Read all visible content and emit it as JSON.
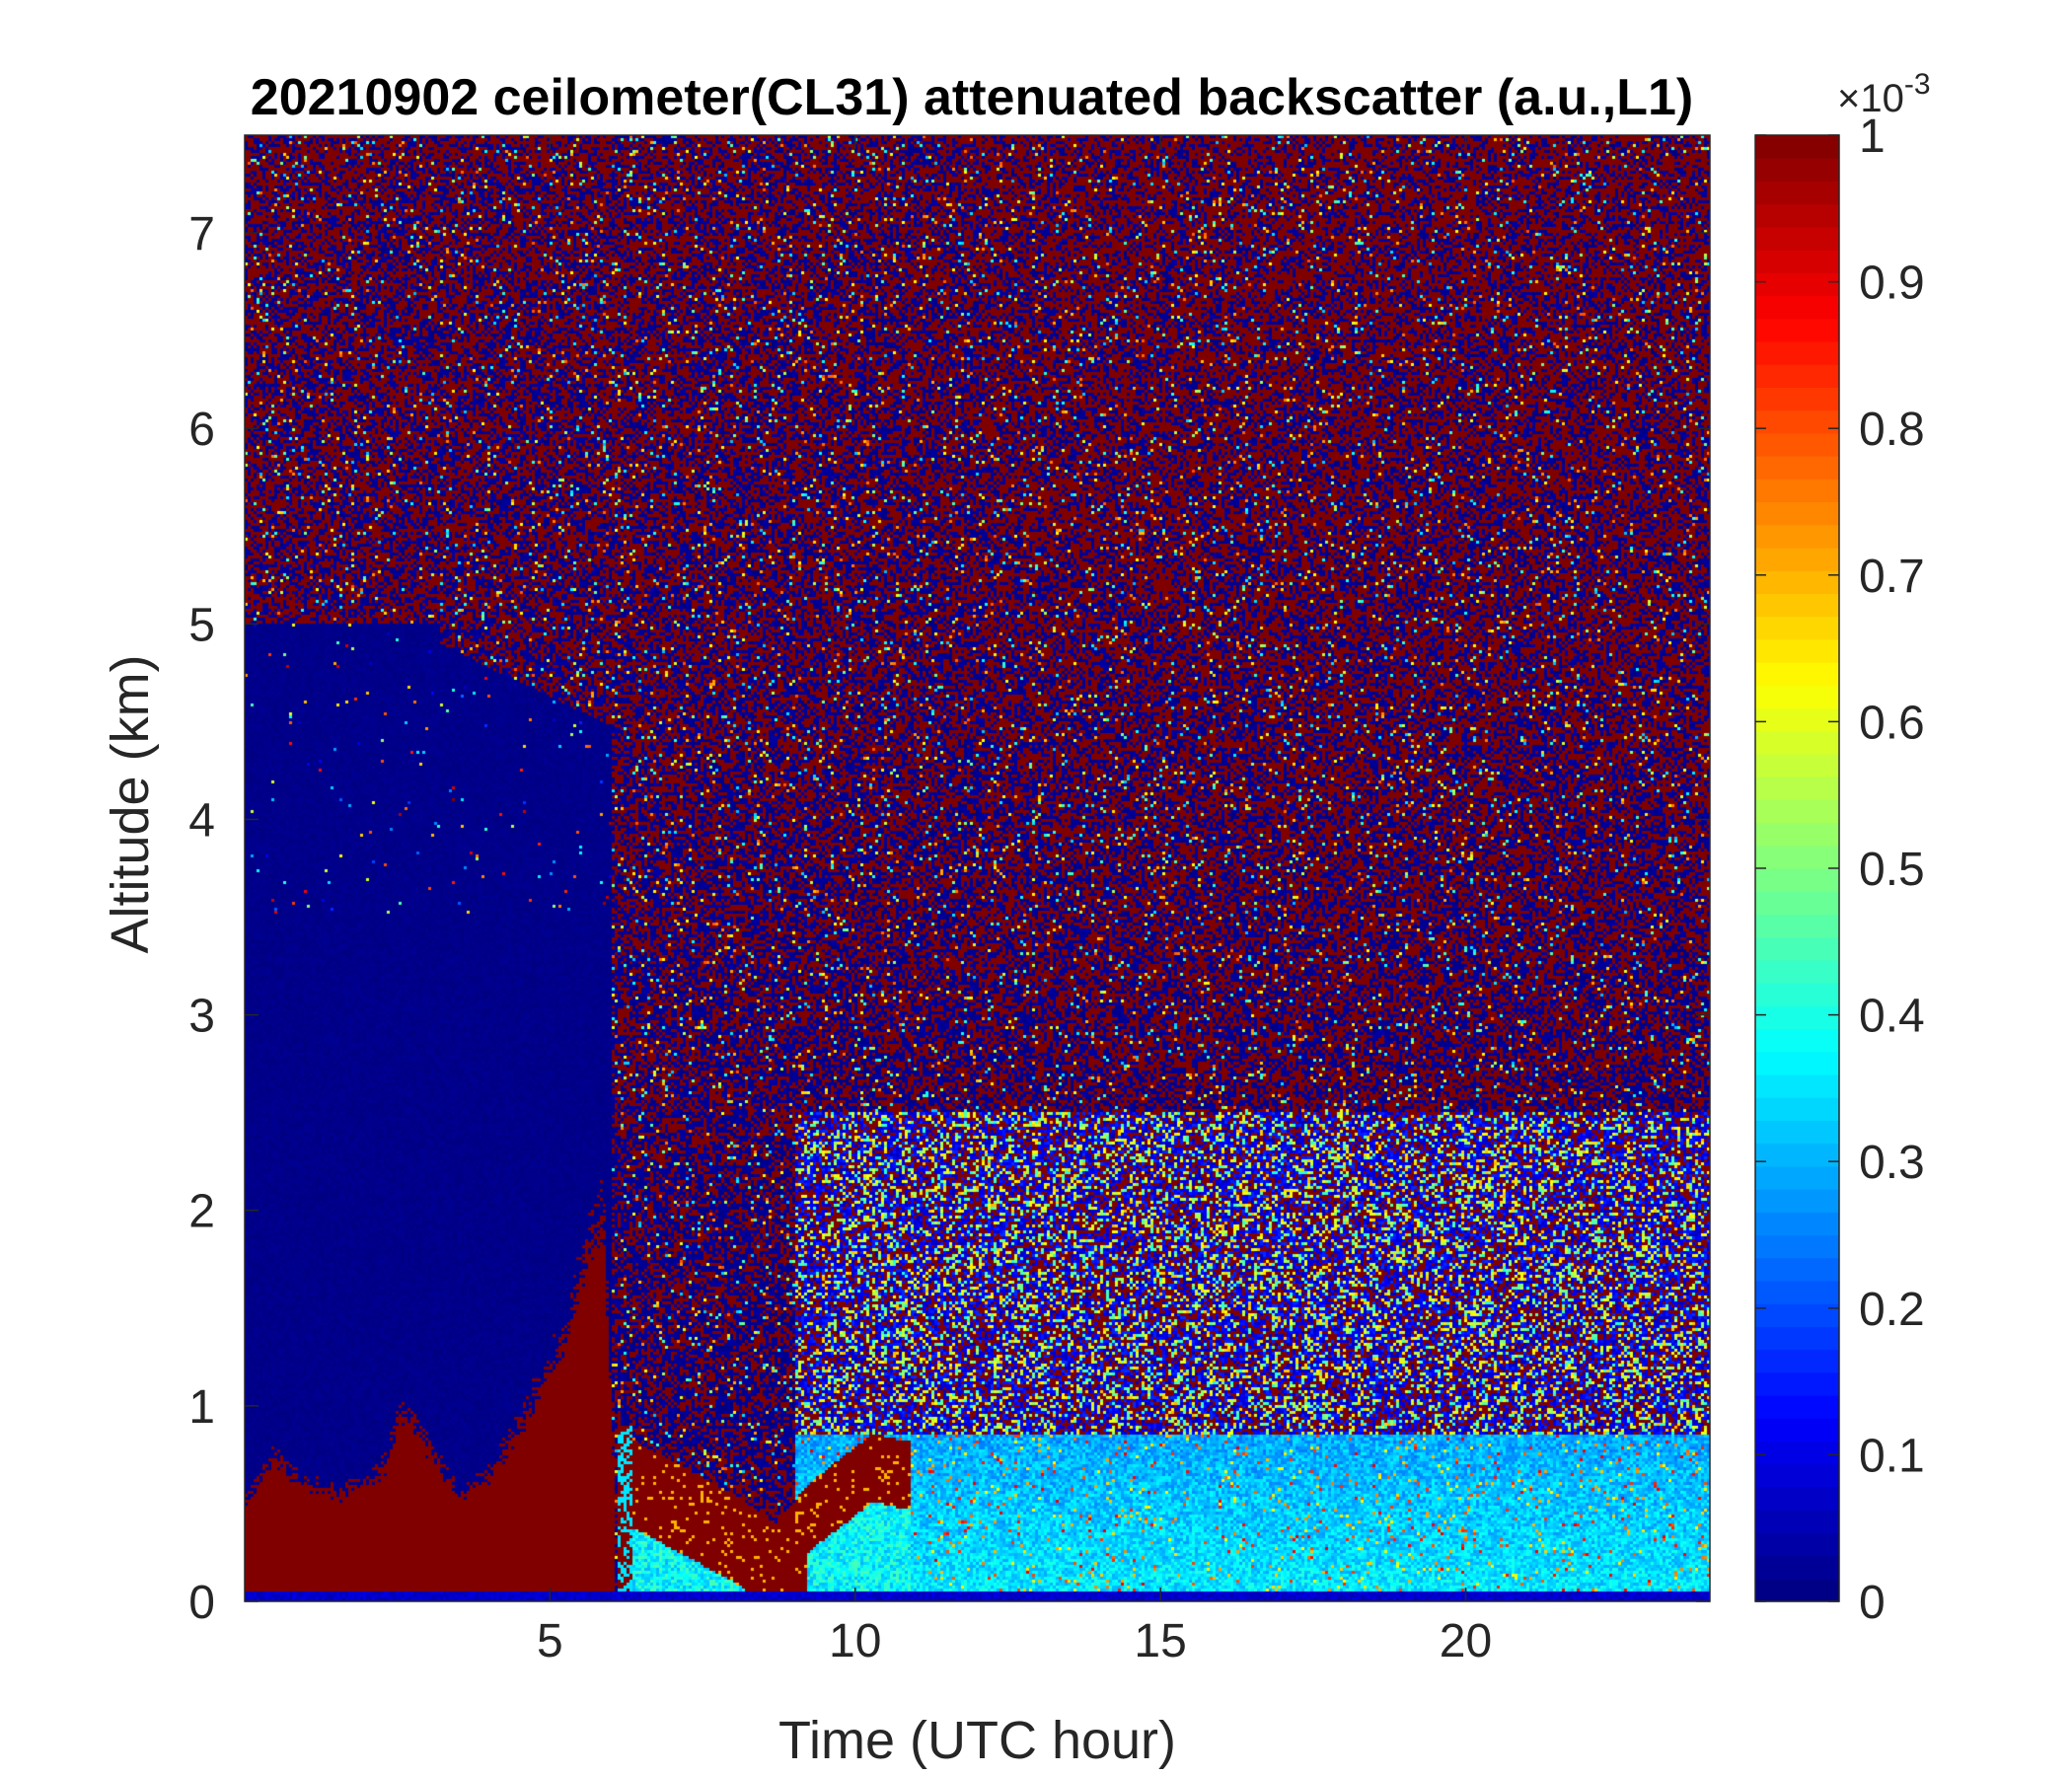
{
  "chart_data": {
    "type": "heatmap",
    "title": "20210902 ceilometer(CL31) attenuated backscatter (a.u.,L1)",
    "xlabel": "Time (UTC hour)",
    "ylabel": "Altitude (km)",
    "xlim": [
      0,
      24
    ],
    "ylim": [
      0,
      7.5
    ],
    "xticks": [
      5,
      10,
      15,
      20
    ],
    "yticks": [
      0,
      1,
      2,
      3,
      4,
      5,
      6,
      7
    ],
    "grid": false,
    "colorbar": {
      "colormap": "jet",
      "range": [
        0,
        1
      ],
      "ticks": [
        0,
        0.1,
        0.2,
        0.3,
        0.4,
        0.5,
        0.6,
        0.7,
        0.8,
        0.9,
        1
      ],
      "tick_labels": [
        "0",
        "0.1",
        "0.2",
        "0.3",
        "0.4",
        "0.5",
        "0.6",
        "0.7",
        "0.8",
        "0.9",
        "1"
      ],
      "exponent_label": "×10",
      "exponent": "-3",
      "location": "right"
    },
    "features": [
      {
        "name": "Saturated low layer (boundary layer / cloud)",
        "time_range_h": [
          0,
          6.1
        ],
        "top_km": [
          0.5,
          2.0
        ],
        "value": 1
      },
      {
        "name": "V-shaped saturated layer",
        "time_range_h": [
          6.2,
          10.8
        ],
        "top_km": [
          0.5,
          0.87
        ],
        "value": 1
      },
      {
        "name": "Aerosol layer",
        "time_range_h": [
          9,
          24
        ],
        "top_km": [
          0.9,
          0.9
        ],
        "value": 0.35
      },
      {
        "name": "Low-noise clear region",
        "time_range_h": [
          0,
          6
        ],
        "top_km": [
          5.0,
          5.0
        ],
        "value": 0
      },
      {
        "name": "Noisy upper region",
        "time_range_h": [
          6,
          24
        ],
        "top_km": [
          7.5,
          7.5
        ],
        "value": 0.5
      }
    ]
  }
}
